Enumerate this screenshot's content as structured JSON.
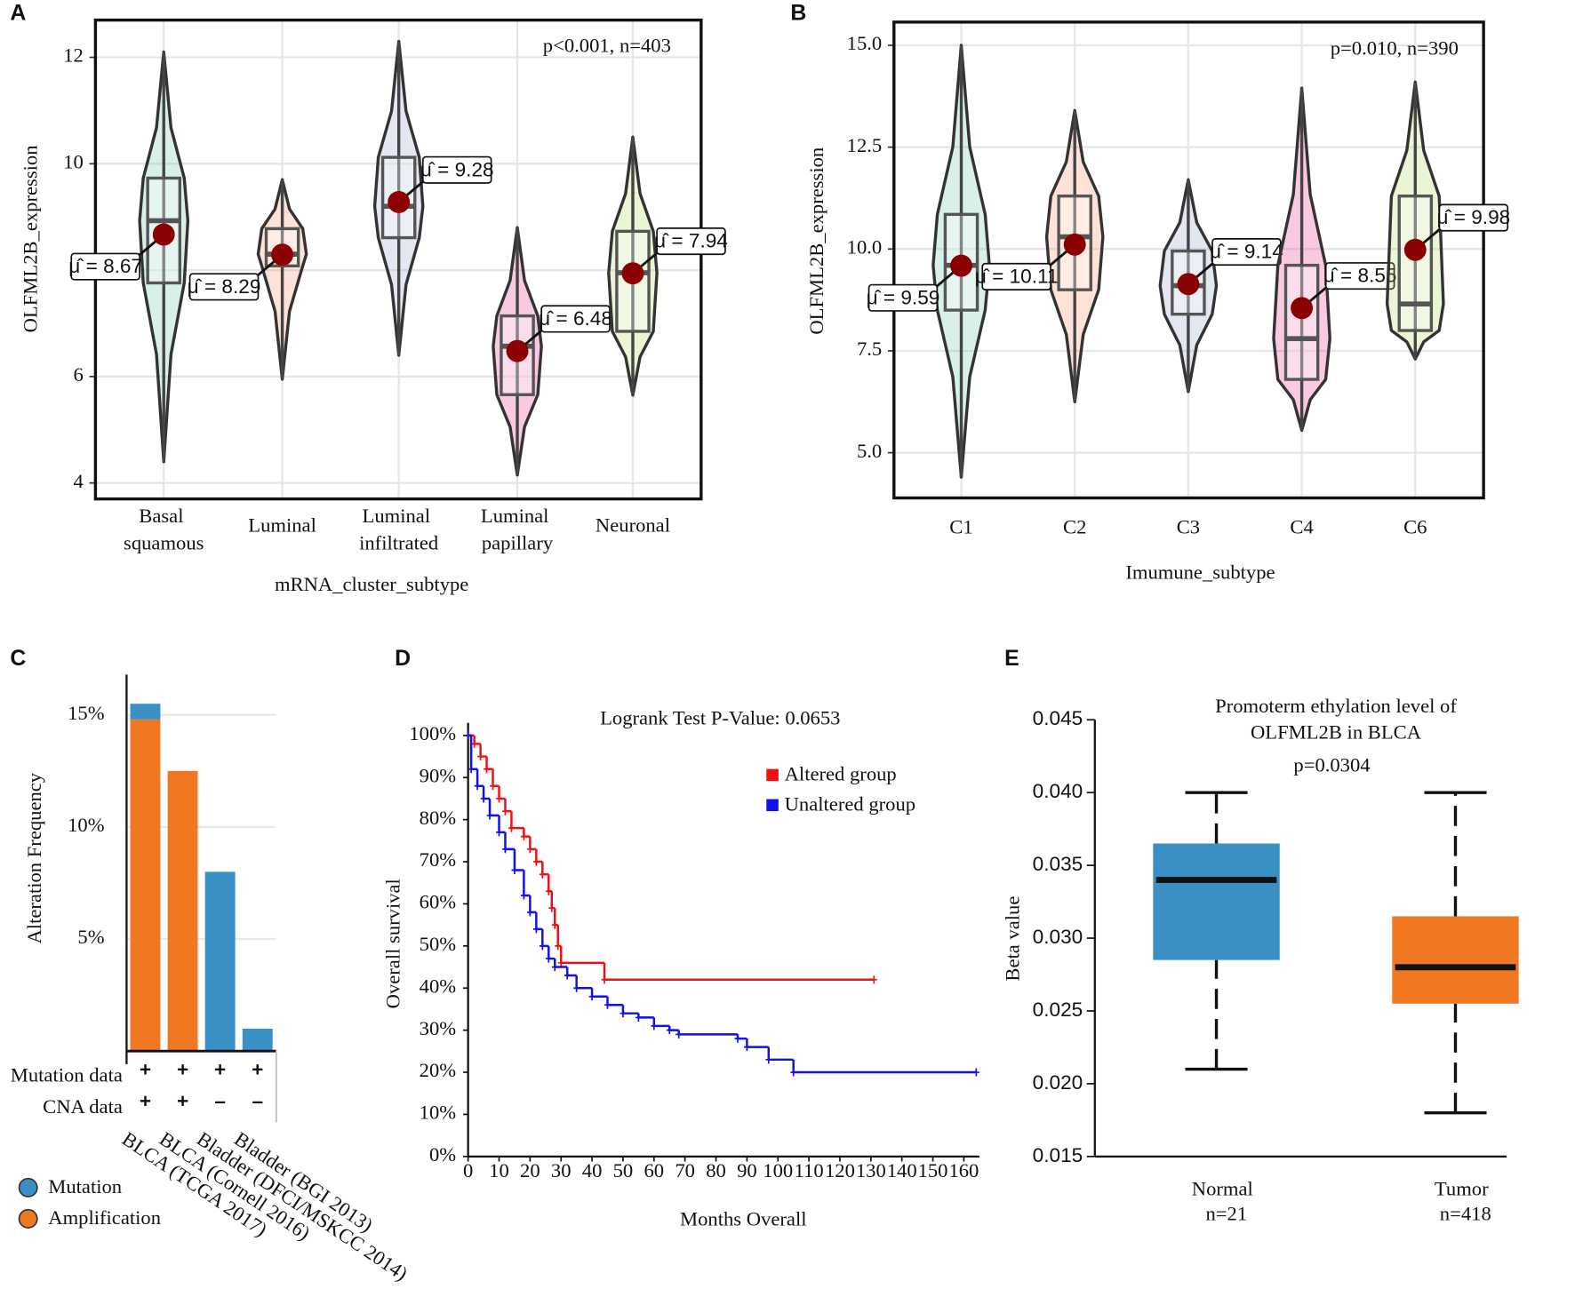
{
  "chart_data": [
    {
      "panel": "A",
      "type": "violin",
      "annotation": "p<0.001, n=403",
      "xlabel": "mRNA_cluster_subtype",
      "ylabel": "OLFML2B_expression",
      "categories": [
        "Basal squamous",
        "Luminal",
        "Luminal infiltrated",
        "Luminal papillary",
        "Neuronal"
      ],
      "colors": [
        "#66c2a5",
        "#fc8d62",
        "#8da0cb",
        "#e7298a",
        "#a6d854"
      ],
      "values": [
        8.67,
        8.29,
        9.28,
        6.48,
        7.94
      ],
      "value_labels": [
        "μ̂ = 8.67",
        "μ̂ = 8.29",
        "μ̂ = 9.28",
        "μ̂ = 6.48",
        "μ̂ = 7.94"
      ],
      "box": {
        "min": [
          4.4,
          5.95,
          6.4,
          4.15,
          5.65
        ],
        "q1": [
          7.76,
          8.08,
          8.61,
          5.66,
          6.85
        ],
        "median": [
          8.93,
          8.3,
          9.2,
          6.57,
          7.95
        ],
        "q3": [
          9.73,
          8.78,
          10.12,
          7.14,
          8.73
        ],
        "max": [
          12.1,
          9.7,
          12.3,
          8.8,
          10.5
        ]
      },
      "ylim": [
        3.7,
        12.7
      ],
      "yticks": [
        4,
        6,
        8,
        10,
        12
      ],
      "grid": true
    },
    {
      "panel": "B",
      "type": "violin",
      "annotation": "p=0.010, n=390",
      "xlabel": "Imumune_subtype",
      "ylabel": "OLFML2B_expression",
      "categories": [
        "C1",
        "C2",
        "C3",
        "C4",
        "C6"
      ],
      "colors": [
        "#66c2a5",
        "#fc8d62",
        "#8da0cb",
        "#e7298a",
        "#a6d854"
      ],
      "values": [
        9.59,
        10.11,
        9.14,
        8.55,
        9.98
      ],
      "value_labels": [
        "μ̂ = 9.59",
        "μ̂ = 10.11",
        "μ̂ = 9.14",
        "μ̂ = 8.55",
        "μ̂ = 9.98"
      ],
      "box": {
        "min": [
          4.4,
          6.25,
          6.5,
          5.55,
          7.3
        ],
        "q1": [
          8.5,
          9.0,
          8.4,
          6.8,
          8.0
        ],
        "median": [
          9.6,
          10.3,
          9.1,
          7.8,
          8.65
        ],
        "q3": [
          10.85,
          11.3,
          9.95,
          9.6,
          11.3
        ],
        "max": [
          15.0,
          13.4,
          11.7,
          13.95,
          14.1
        ]
      },
      "ylim": [
        3.89,
        15.57
      ],
      "yticks": [
        {
          "value": 5,
          "label": "5.0"
        },
        7.5,
        {
          "value": 10,
          "label": "10.0"
        },
        12.5,
        {
          "value": 15,
          "label": "15.0"
        }
      ],
      "grid": true
    },
    {
      "panel": "C",
      "type": "bar",
      "stacked": true,
      "ylabel": "Alteration Frequency",
      "categories": [
        "BLCA (TCGA 2017)",
        "BLCA (Cornell 2016)",
        "Bladder (DFCI/MSKCC 2014)",
        "Bladder (BGI 2013)"
      ],
      "series": [
        {
          "name": "Mutation",
          "color": "#3a8fc4",
          "values": [
            0.7,
            0,
            8,
            1
          ]
        },
        {
          "name": "Amplification",
          "color": "#f07822",
          "values": [
            14.8,
            12.5,
            0,
            0
          ]
        }
      ],
      "rows": [
        {
          "label": "Mutation data",
          "marks": [
            "+",
            "+",
            "+",
            "+"
          ]
        },
        {
          "label": "CNA data",
          "marks": [
            "+",
            "+",
            "–",
            "–"
          ]
        }
      ],
      "ylim": [
        0,
        16.8
      ],
      "yticks": [
        {
          "value": 5,
          "label": "5%"
        },
        {
          "value": 10,
          "label": "10%"
        },
        {
          "value": 15,
          "label": "15%"
        }
      ],
      "grid": true
    },
    {
      "panel": "D",
      "type": "step",
      "annotation": "Logrank Test P-Value: 0.0653",
      "xlabel": "Months Overall",
      "ylabel": "Overall survival",
      "series": [
        {
          "name": "Altered group",
          "color": "#ee1111",
          "x": [
            0,
            2,
            4,
            6,
            8,
            10,
            12,
            14,
            18,
            20,
            22,
            24,
            26,
            27,
            28,
            29,
            30,
            44,
            131
          ],
          "values": [
            100,
            98,
            95,
            92,
            88,
            85,
            82,
            78,
            76,
            73,
            70,
            67,
            63,
            59,
            55,
            50,
            46,
            42,
            42
          ]
        },
        {
          "name": "Unaltered group",
          "color": "#1111ee",
          "x": [
            0,
            1,
            3,
            5,
            7,
            10,
            12,
            15,
            18,
            20,
            22,
            24,
            26,
            28,
            32,
            35,
            40,
            45,
            50,
            55,
            60,
            65,
            68,
            87,
            90,
            97,
            105,
            164
          ],
          "values": [
            100,
            92,
            88,
            85,
            81,
            77,
            73,
            68,
            62,
            58,
            54,
            50,
            47,
            45,
            43,
            40,
            38,
            36,
            34,
            33,
            31,
            30,
            29,
            28,
            26,
            23,
            20,
            20
          ]
        }
      ],
      "xlim": [
        0,
        165
      ],
      "xticks": [
        0,
        10,
        20,
        30,
        40,
        50,
        60,
        70,
        80,
        90,
        100,
        110,
        120,
        130,
        140,
        150,
        160
      ],
      "ylim": [
        0,
        103
      ],
      "yticks": [
        {
          "value": 0,
          "label": "0%"
        },
        {
          "value": 10,
          "label": "10%"
        },
        {
          "value": 20,
          "label": "20%"
        },
        {
          "value": 30,
          "label": "30%"
        },
        {
          "value": 40,
          "label": "40%"
        },
        {
          "value": 50,
          "label": "50%"
        },
        {
          "value": 60,
          "label": "60%"
        },
        {
          "value": 70,
          "label": "70%"
        },
        {
          "value": 80,
          "label": "80%"
        },
        {
          "value": 90,
          "label": "90%"
        },
        {
          "value": 100,
          "label": "100%"
        }
      ]
    },
    {
      "panel": "E",
      "type": "box",
      "title": [
        "Promoterm ethylation level of",
        "OLFML2B in BLCA"
      ],
      "annotation": "p=0.0304",
      "ylabel": "Beta value",
      "categories": [
        "Normal",
        "Tumor"
      ],
      "n_labels": [
        "n=21",
        "n=418"
      ],
      "colors": [
        "#3a8fc4",
        "#f07822"
      ],
      "box": {
        "min": [
          0.021,
          0.018
        ],
        "q1": [
          0.0285,
          0.0255
        ],
        "median": [
          0.034,
          0.028
        ],
        "q3": [
          0.0365,
          0.0315
        ],
        "max": [
          0.04,
          0.04
        ]
      },
      "ylim": [
        0.015,
        0.045
      ],
      "yticks": [
        0.015,
        {
          "value": 0.02,
          "label": "0.020"
        },
        0.025,
        {
          "value": 0.03,
          "label": "0.030"
        },
        0.035,
        {
          "value": 0.04,
          "label": "0.040"
        },
        0.045
      ]
    }
  ]
}
